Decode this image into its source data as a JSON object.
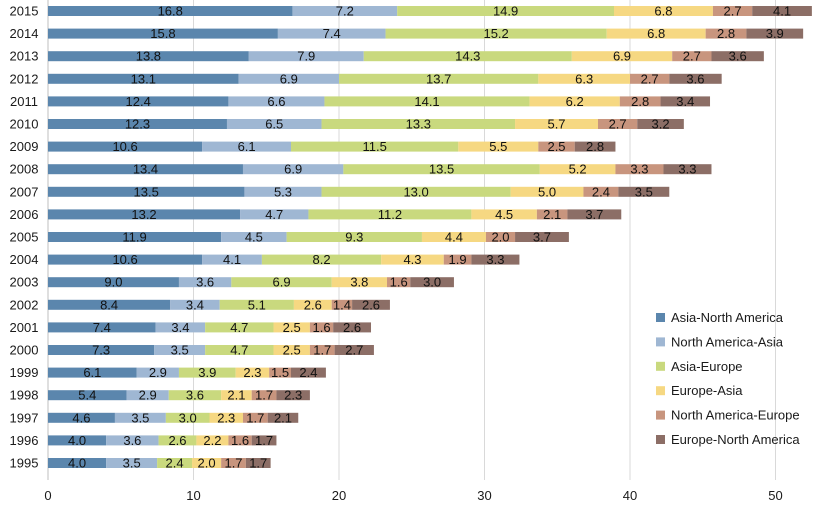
{
  "chart_data": {
    "type": "bar",
    "orientation": "horizontal",
    "stacked": true,
    "title": "",
    "xlabel": "",
    "ylabel": "",
    "xlim": [
      0,
      53
    ],
    "xticks": [
      0,
      10,
      20,
      30,
      40,
      50
    ],
    "grid": "vertical",
    "legend_position": "bottom-right",
    "categories": [
      "2015",
      "2014",
      "2013",
      "2012",
      "2011",
      "2010",
      "2009",
      "2008",
      "2007",
      "2006",
      "2005",
      "2004",
      "2003",
      "2002",
      "2001",
      "2000",
      "1999",
      "1998",
      "1997",
      "1996",
      "1995"
    ],
    "series": [
      {
        "name": "Asia-North America",
        "color": "#5b86ad",
        "values": [
          16.8,
          15.8,
          13.8,
          13.1,
          12.4,
          12.3,
          10.6,
          13.4,
          13.5,
          13.2,
          11.9,
          10.6,
          9.0,
          8.4,
          7.4,
          7.3,
          6.1,
          5.4,
          4.6,
          4.0,
          4.0
        ]
      },
      {
        "name": "North America-Asia",
        "color": "#9fb7d3",
        "values": [
          7.2,
          7.4,
          7.9,
          6.9,
          6.6,
          6.5,
          6.1,
          6.9,
          5.3,
          4.7,
          4.5,
          4.1,
          3.6,
          3.4,
          3.4,
          3.5,
          2.9,
          2.9,
          3.5,
          3.6,
          3.5
        ]
      },
      {
        "name": "Asia-Europe",
        "color": "#c9d97e",
        "values": [
          14.9,
          15.2,
          14.3,
          13.7,
          14.1,
          13.3,
          11.5,
          13.5,
          13.0,
          11.2,
          9.3,
          8.2,
          6.9,
          5.1,
          4.7,
          4.7,
          3.9,
          3.6,
          3.0,
          2.6,
          2.4
        ]
      },
      {
        "name": "Europe-Asia",
        "color": "#f6d882",
        "values": [
          6.8,
          6.8,
          6.9,
          6.3,
          6.2,
          5.7,
          5.5,
          5.2,
          5.0,
          4.5,
          4.4,
          4.3,
          3.8,
          2.6,
          2.5,
          2.5,
          2.3,
          2.1,
          2.3,
          2.2,
          2.0
        ]
      },
      {
        "name": "North America-Europe",
        "color": "#c8957e",
        "values": [
          2.7,
          2.8,
          2.7,
          2.7,
          2.8,
          2.7,
          2.5,
          3.3,
          2.4,
          2.1,
          2.0,
          1.9,
          1.6,
          1.4,
          1.6,
          1.7,
          1.5,
          1.7,
          1.7,
          1.6,
          1.7
        ]
      },
      {
        "name": "Europe-North America",
        "color": "#8c6e66",
        "values": [
          4.1,
          3.9,
          3.6,
          3.6,
          3.4,
          3.2,
          2.8,
          3.3,
          3.5,
          3.7,
          3.7,
          3.3,
          3.0,
          2.6,
          2.6,
          2.7,
          2.4,
          2.3,
          2.1,
          1.7,
          1.7
        ]
      }
    ]
  }
}
